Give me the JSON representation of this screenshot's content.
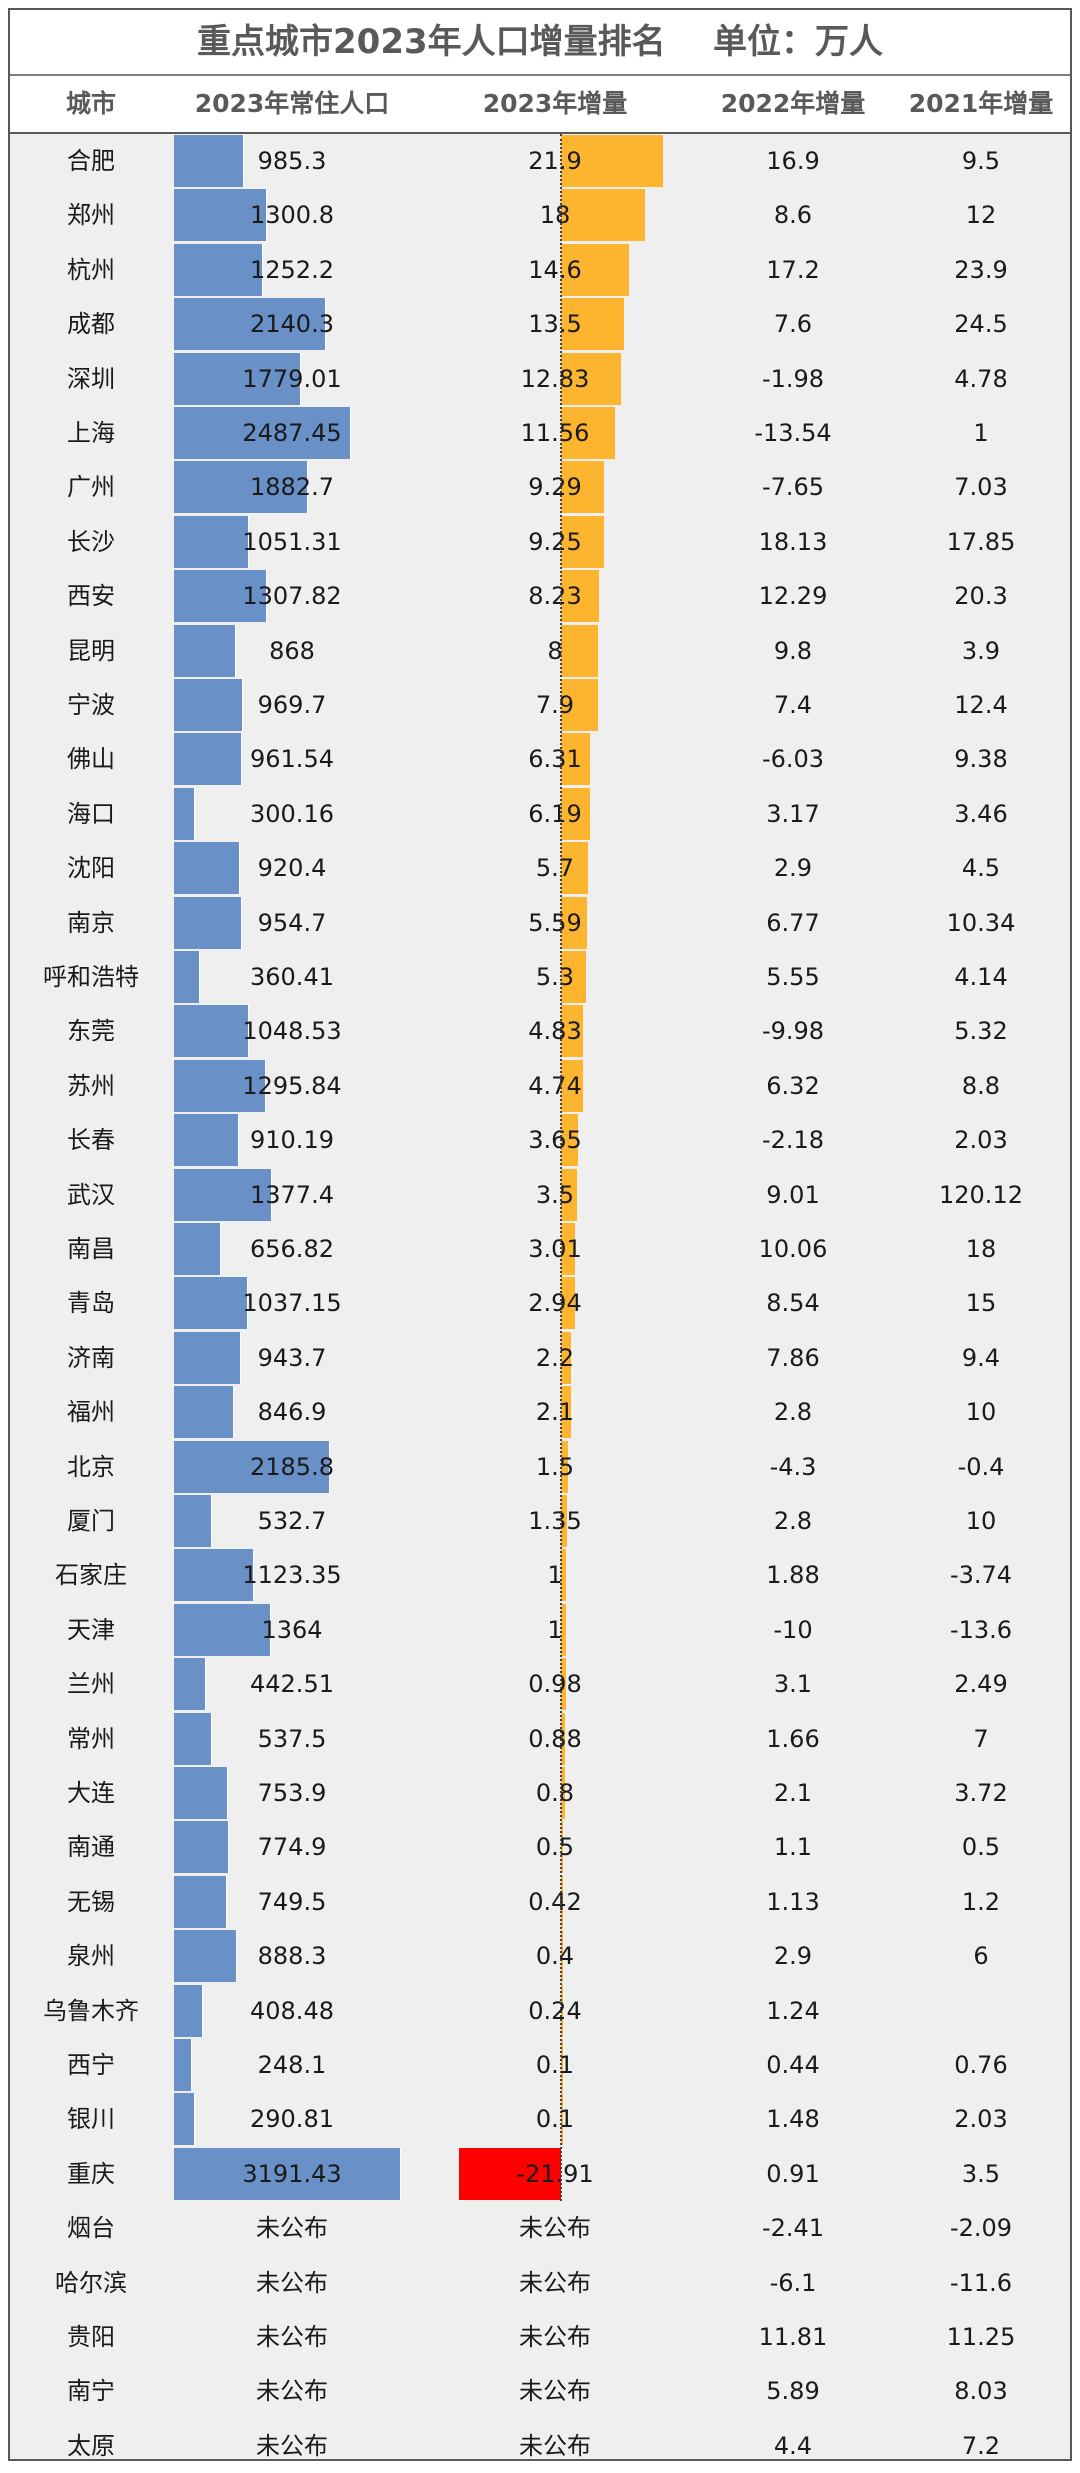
{
  "title": "重点城市2023年人口增量排名    单位：万人",
  "colors": {
    "pop_bar": "#6a90c8",
    "inc_pos": "#fdb52f",
    "inc_neg": "#ff0000",
    "line": "#595959"
  },
  "headers": [
    "城市",
    "2023年常住人口",
    "2023年增量",
    "2022年增量",
    "2021年增量"
  ],
  "chart_data": {
    "type": "table",
    "title": "重点城市2023年人口增量排名    单位：万人",
    "columns": [
      "城市",
      "2023年常住人口",
      "2023年增量",
      "2022年增量",
      "2021年增量"
    ],
    "bars": {
      "2023年常住人口": "data bar",
      "2023年增量": "data bar, negative in red"
    },
    "rows": [
      [
        "合肥",
        "985.3",
        "21.9",
        "16.9",
        "9.5"
      ],
      [
        "郑州",
        "1300.8",
        "18",
        "8.6",
        "12"
      ],
      [
        "杭州",
        "1252.2",
        "14.6",
        "17.2",
        "23.9"
      ],
      [
        "成都",
        "2140.3",
        "13.5",
        "7.6",
        "24.5"
      ],
      [
        "深圳",
        "1779.01",
        "12.83",
        "-1.98",
        "4.78"
      ],
      [
        "上海",
        "2487.45",
        "11.56",
        "-13.54",
        "1"
      ],
      [
        "广州",
        "1882.7",
        "9.29",
        "-7.65",
        "7.03"
      ],
      [
        "长沙",
        "1051.31",
        "9.25",
        "18.13",
        "17.85"
      ],
      [
        "西安",
        "1307.82",
        "8.23",
        "12.29",
        "20.3"
      ],
      [
        "昆明",
        "868",
        "8",
        "9.8",
        "3.9"
      ],
      [
        "宁波",
        "969.7",
        "7.9",
        "7.4",
        "12.4"
      ],
      [
        "佛山",
        "961.54",
        "6.31",
        "-6.03",
        "9.38"
      ],
      [
        "海口",
        "300.16",
        "6.19",
        "3.17",
        "3.46"
      ],
      [
        "沈阳",
        "920.4",
        "5.7",
        "2.9",
        "4.5"
      ],
      [
        "南京",
        "954.7",
        "5.59",
        "6.77",
        "10.34"
      ],
      [
        "呼和浩特",
        "360.41",
        "5.3",
        "5.55",
        "4.14"
      ],
      [
        "东莞",
        "1048.53",
        "4.83",
        "-9.98",
        "5.32"
      ],
      [
        "苏州",
        "1295.84",
        "4.74",
        "6.32",
        "8.8"
      ],
      [
        "长春",
        "910.19",
        "3.65",
        "-2.18",
        "2.03"
      ],
      [
        "武汉",
        "1377.4",
        "3.5",
        "9.01",
        "120.12"
      ],
      [
        "南昌",
        "656.82",
        "3.01",
        "10.06",
        "18"
      ],
      [
        "青岛",
        "1037.15",
        "2.94",
        "8.54",
        "15"
      ],
      [
        "济南",
        "943.7",
        "2.2",
        "7.86",
        "9.4"
      ],
      [
        "福州",
        "846.9",
        "2.1",
        "2.8",
        "10"
      ],
      [
        "北京",
        "2185.8",
        "1.5",
        "-4.3",
        "-0.4"
      ],
      [
        "厦门",
        "532.7",
        "1.35",
        "2.8",
        "10"
      ],
      [
        "石家庄",
        "1123.35",
        "1",
        "1.88",
        "-3.74"
      ],
      [
        "天津",
        "1364",
        "1",
        "-10",
        "-13.6"
      ],
      [
        "兰州",
        "442.51",
        "0.98",
        "3.1",
        "2.49"
      ],
      [
        "常州",
        "537.5",
        "0.88",
        "1.66",
        "7"
      ],
      [
        "大连",
        "753.9",
        "0.8",
        "2.1",
        "3.72"
      ],
      [
        "南通",
        "774.9",
        "0.5",
        "1.1",
        "0.5"
      ],
      [
        "无锡",
        "749.5",
        "0.42",
        "1.13",
        "1.2"
      ],
      [
        "泉州",
        "888.3",
        "0.4",
        "2.9",
        "6"
      ],
      [
        "乌鲁木齐",
        "408.48",
        "0.24",
        "1.24",
        ""
      ],
      [
        "西宁",
        "248.1",
        "0.1",
        "0.44",
        "0.76"
      ],
      [
        "银川",
        "290.81",
        "0.1",
        "1.48",
        "2.03"
      ],
      [
        "重庆",
        "3191.43",
        "-21.91",
        "0.91",
        "3.5"
      ],
      [
        "烟台",
        "未公布",
        "未公布",
        "-2.41",
        "-2.09"
      ],
      [
        "哈尔滨",
        "未公布",
        "未公布",
        "-6.1",
        "-11.6"
      ],
      [
        "贵阳",
        "未公布",
        "未公布",
        "11.81",
        "11.25"
      ],
      [
        "南宁",
        "未公布",
        "未公布",
        "5.89",
        "8.03"
      ],
      [
        "太原",
        "未公布",
        "未公布",
        "4.4",
        "7.2"
      ]
    ]
  }
}
